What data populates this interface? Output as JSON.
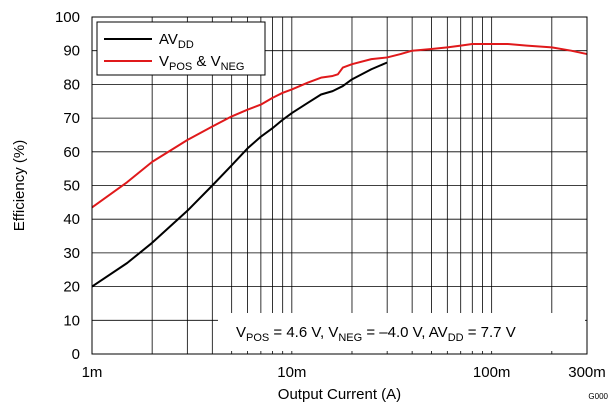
{
  "chart_data": {
    "type": "line",
    "xscale": "log",
    "xlim": [
      0.001,
      0.3
    ],
    "ylim": [
      0,
      100
    ],
    "xlabel": "Output Current (A)",
    "ylabel": "Efficiency (%)",
    "x_ticks": [
      {
        "value": 0.001,
        "label": "1m"
      },
      {
        "value": 0.01,
        "label": "10m"
      },
      {
        "value": 0.1,
        "label": "100m"
      },
      {
        "value": 0.3,
        "label": "300m"
      }
    ],
    "y_ticks": [
      0,
      10,
      20,
      30,
      40,
      50,
      60,
      70,
      80,
      90,
      100
    ],
    "grid": true,
    "legend_position": "top-left",
    "series": [
      {
        "name": "AVDD",
        "color": "#000000",
        "points": [
          [
            0.001,
            20
          ],
          [
            0.0015,
            27
          ],
          [
            0.002,
            33
          ],
          [
            0.003,
            42.5
          ],
          [
            0.004,
            50
          ],
          [
            0.005,
            56
          ],
          [
            0.006,
            61
          ],
          [
            0.007,
            64.5
          ],
          [
            0.008,
            67
          ],
          [
            0.009,
            69.5
          ],
          [
            0.01,
            71.5
          ],
          [
            0.012,
            74.5
          ],
          [
            0.014,
            77
          ],
          [
            0.016,
            78
          ],
          [
            0.018,
            79.5
          ],
          [
            0.02,
            81.5
          ],
          [
            0.025,
            84.5
          ],
          [
            0.03,
            86.5
          ]
        ]
      },
      {
        "name": "VPOS & VNEG",
        "color": "#e0191b",
        "points": [
          [
            0.001,
            43.5
          ],
          [
            0.0015,
            51
          ],
          [
            0.002,
            57
          ],
          [
            0.003,
            63.5
          ],
          [
            0.004,
            67.5
          ],
          [
            0.005,
            70.5
          ],
          [
            0.006,
            72.5
          ],
          [
            0.007,
            74
          ],
          [
            0.008,
            76
          ],
          [
            0.009,
            77.5
          ],
          [
            0.01,
            78.5
          ],
          [
            0.012,
            80.5
          ],
          [
            0.014,
            82
          ],
          [
            0.016,
            82.5
          ],
          [
            0.017,
            83
          ],
          [
            0.018,
            85
          ],
          [
            0.02,
            86
          ],
          [
            0.025,
            87.5
          ],
          [
            0.03,
            88
          ],
          [
            0.035,
            89
          ],
          [
            0.04,
            90
          ],
          [
            0.05,
            90.5
          ],
          [
            0.06,
            91
          ],
          [
            0.07,
            91.5
          ],
          [
            0.08,
            92
          ],
          [
            0.1,
            92
          ],
          [
            0.12,
            92
          ],
          [
            0.15,
            91.5
          ],
          [
            0.2,
            91
          ],
          [
            0.25,
            90
          ],
          [
            0.3,
            89
          ]
        ]
      }
    ],
    "legend": [
      {
        "main": "AV",
        "sub": "DD",
        "color": "#000000"
      },
      {
        "main": "V",
        "sub": "POS",
        "mid": " & V",
        "sub2": "NEG",
        "color": "#e0191b"
      }
    ],
    "annotation": {
      "parts": [
        {
          "t": "V"
        },
        {
          "t": "POS",
          "sub": true
        },
        {
          "t": " = 4.6 V, V"
        },
        {
          "t": "NEG",
          "sub": true
        },
        {
          "t": " = –4.0 V, AV"
        },
        {
          "t": "DD",
          "sub": true
        },
        {
          "t": " = 7.7 V"
        }
      ]
    },
    "figure_code": "G000"
  }
}
